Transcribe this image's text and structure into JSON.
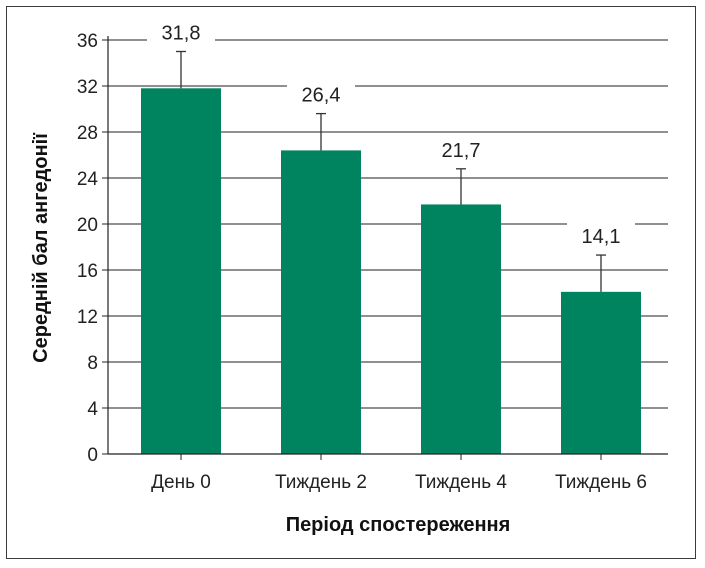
{
  "chart_data": {
    "type": "bar",
    "categories": [
      "День 0",
      "Тиждень 2",
      "Тиждень 4",
      "Тиждень 6"
    ],
    "values": [
      31.8,
      26.4,
      21.7,
      14.1
    ],
    "value_labels": [
      "31,8",
      "26,4",
      "21,7",
      "14,1"
    ],
    "error_upper": [
      35.0,
      29.6,
      24.8,
      17.3
    ],
    "xlabel": "Період спостереження",
    "ylabel": "Середній бал ангедонії",
    "ylim": [
      0,
      36
    ],
    "yticks": [
      0,
      4,
      8,
      12,
      16,
      20,
      24,
      28,
      32,
      36
    ],
    "grid": "horizontal",
    "bar_color": "#00845f"
  }
}
